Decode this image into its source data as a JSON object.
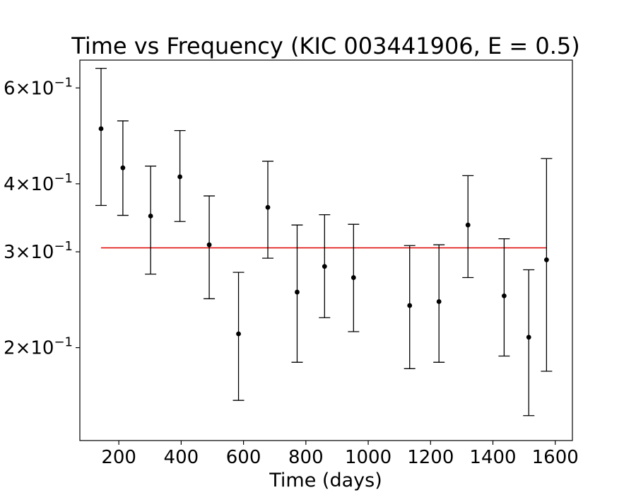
{
  "chart_data": {
    "type": "scatter",
    "title": "Time vs Frequency (KIC 003441906, E = 0.5)",
    "xlabel": "Time (days)",
    "ylabel": "",
    "xlim": [
      75,
      1655
    ],
    "ylim": [
      0.135,
      0.675
    ],
    "y_scale": "log",
    "grid": false,
    "x_ticks": [
      200,
      400,
      600,
      800,
      1000,
      1200,
      1400,
      1600
    ],
    "x_tick_labels": [
      "200",
      "400",
      "600",
      "800",
      "1000",
      "1200",
      "1400",
      "1600"
    ],
    "y_ticks": [
      0.2,
      0.3,
      0.4,
      0.6
    ],
    "y_tick_labels": [
      {
        "mantissa": "2",
        "times": "×",
        "base": "10",
        "exp": "−1"
      },
      {
        "mantissa": "3",
        "times": "×",
        "base": "10",
        "exp": "−1"
      },
      {
        "mantissa": "4",
        "times": "×",
        "base": "10",
        "exp": "−1"
      },
      {
        "mantissa": "6",
        "times": "×",
        "base": "10",
        "exp": "−1"
      }
    ],
    "series": [
      {
        "marker_color": "#000000",
        "points": [
          {
            "x": 143,
            "y": 0.505,
            "y_low": 0.365,
            "y_high": 0.652
          },
          {
            "x": 213,
            "y": 0.428,
            "y_low": 0.35,
            "y_high": 0.522
          },
          {
            "x": 302,
            "y": 0.349,
            "y_low": 0.273,
            "y_high": 0.431
          },
          {
            "x": 396,
            "y": 0.412,
            "y_low": 0.341,
            "y_high": 0.501
          },
          {
            "x": 490,
            "y": 0.309,
            "y_low": 0.246,
            "y_high": 0.38
          },
          {
            "x": 584,
            "y": 0.212,
            "y_low": 0.16,
            "y_high": 0.275
          },
          {
            "x": 678,
            "y": 0.362,
            "y_low": 0.292,
            "y_high": 0.44
          },
          {
            "x": 772,
            "y": 0.253,
            "y_low": 0.188,
            "y_high": 0.336
          },
          {
            "x": 860,
            "y": 0.282,
            "y_low": 0.227,
            "y_high": 0.351
          },
          {
            "x": 953,
            "y": 0.269,
            "y_low": 0.214,
            "y_high": 0.337
          },
          {
            "x": 1133,
            "y": 0.239,
            "y_low": 0.183,
            "y_high": 0.308
          },
          {
            "x": 1227,
            "y": 0.243,
            "y_low": 0.188,
            "y_high": 0.309
          },
          {
            "x": 1320,
            "y": 0.336,
            "y_low": 0.269,
            "y_high": 0.414
          },
          {
            "x": 1436,
            "y": 0.249,
            "y_low": 0.193,
            "y_high": 0.317
          },
          {
            "x": 1515,
            "y": 0.209,
            "y_low": 0.15,
            "y_high": 0.278
          },
          {
            "x": 1572,
            "y": 0.29,
            "y_low": 0.181,
            "y_high": 0.445
          }
        ]
      },
      {
        "type": "line",
        "color": "#e00000",
        "x": [
          143,
          1572
        ],
        "values": [
          0.305,
          0.305
        ]
      }
    ]
  }
}
